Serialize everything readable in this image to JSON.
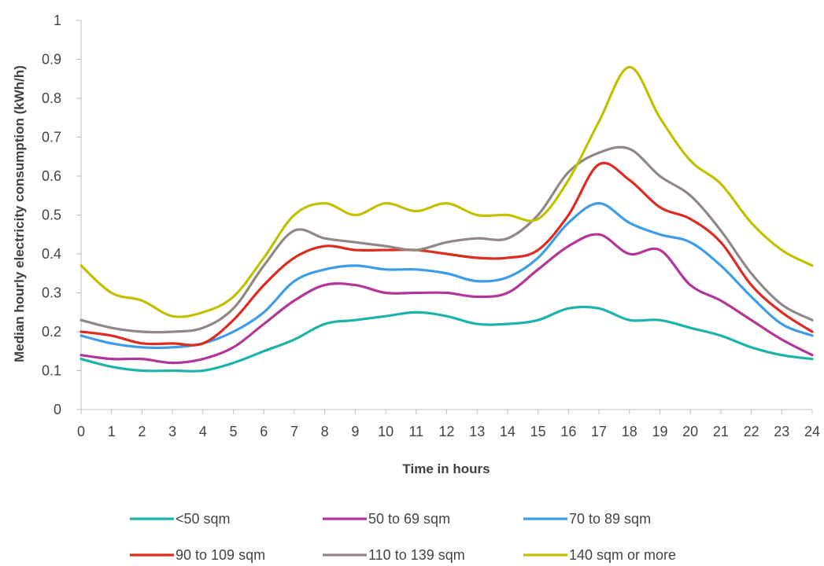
{
  "chart_data": {
    "type": "line",
    "title": "",
    "xlabel": "Time in hours",
    "ylabel": "Median hourly electricity consumption (kWh/h)",
    "x": [
      0,
      1,
      2,
      3,
      4,
      5,
      6,
      7,
      8,
      9,
      10,
      11,
      12,
      13,
      14,
      15,
      16,
      17,
      18,
      19,
      20,
      21,
      22,
      23,
      24
    ],
    "xlim": [
      0,
      24
    ],
    "ylim": [
      0,
      1
    ],
    "y_ticks": [
      "0",
      "0.1",
      "0.2",
      "0.3",
      "0.4",
      "0.5",
      "0.6",
      "0.7",
      "0.8",
      "0.9",
      "1"
    ],
    "x_ticks": [
      "0",
      "1",
      "2",
      "3",
      "4",
      "5",
      "6",
      "7",
      "8",
      "9",
      "10",
      "11",
      "12",
      "13",
      "14",
      "15",
      "16",
      "17",
      "18",
      "19",
      "20",
      "21",
      "22",
      "23",
      "24"
    ],
    "grid": false,
    "legend_position": "bottom",
    "series": [
      {
        "name": "<50 sqm",
        "color": "#1cb3aa",
        "values": [
          0.13,
          0.11,
          0.1,
          0.1,
          0.1,
          0.12,
          0.15,
          0.18,
          0.22,
          0.23,
          0.24,
          0.25,
          0.24,
          0.22,
          0.22,
          0.23,
          0.26,
          0.26,
          0.23,
          0.23,
          0.21,
          0.19,
          0.16,
          0.14,
          0.13
        ]
      },
      {
        "name": "50 to 69 sqm",
        "color": "#b2359a",
        "values": [
          0.14,
          0.13,
          0.13,
          0.12,
          0.13,
          0.16,
          0.22,
          0.28,
          0.32,
          0.32,
          0.3,
          0.3,
          0.3,
          0.29,
          0.3,
          0.36,
          0.42,
          0.45,
          0.4,
          0.41,
          0.32,
          0.28,
          0.23,
          0.18,
          0.14
        ]
      },
      {
        "name": "70 to 89 sqm",
        "color": "#3d9ce8",
        "values": [
          0.19,
          0.17,
          0.16,
          0.16,
          0.17,
          0.2,
          0.25,
          0.33,
          0.36,
          0.37,
          0.36,
          0.36,
          0.35,
          0.33,
          0.34,
          0.39,
          0.48,
          0.53,
          0.48,
          0.45,
          0.43,
          0.37,
          0.29,
          0.22,
          0.19
        ]
      },
      {
        "name": "90 to 109 sqm",
        "color": "#de2b1f",
        "values": [
          0.2,
          0.19,
          0.17,
          0.17,
          0.17,
          0.23,
          0.32,
          0.39,
          0.42,
          0.41,
          0.41,
          0.41,
          0.4,
          0.39,
          0.39,
          0.41,
          0.5,
          0.63,
          0.59,
          0.52,
          0.49,
          0.43,
          0.32,
          0.25,
          0.2
        ]
      },
      {
        "name": "110 to 139 sqm",
        "color": "#918784",
        "values": [
          0.23,
          0.21,
          0.2,
          0.2,
          0.21,
          0.26,
          0.37,
          0.46,
          0.44,
          0.43,
          0.42,
          0.41,
          0.43,
          0.44,
          0.44,
          0.5,
          0.61,
          0.66,
          0.67,
          0.6,
          0.55,
          0.46,
          0.35,
          0.27,
          0.23
        ]
      },
      {
        "name": "140 sqm or more",
        "color": "#c2c000",
        "values": [
          0.37,
          0.3,
          0.28,
          0.24,
          0.25,
          0.29,
          0.39,
          0.5,
          0.53,
          0.5,
          0.53,
          0.51,
          0.53,
          0.5,
          0.5,
          0.49,
          0.59,
          0.74,
          0.88,
          0.75,
          0.64,
          0.58,
          0.48,
          0.41,
          0.37
        ]
      }
    ]
  }
}
